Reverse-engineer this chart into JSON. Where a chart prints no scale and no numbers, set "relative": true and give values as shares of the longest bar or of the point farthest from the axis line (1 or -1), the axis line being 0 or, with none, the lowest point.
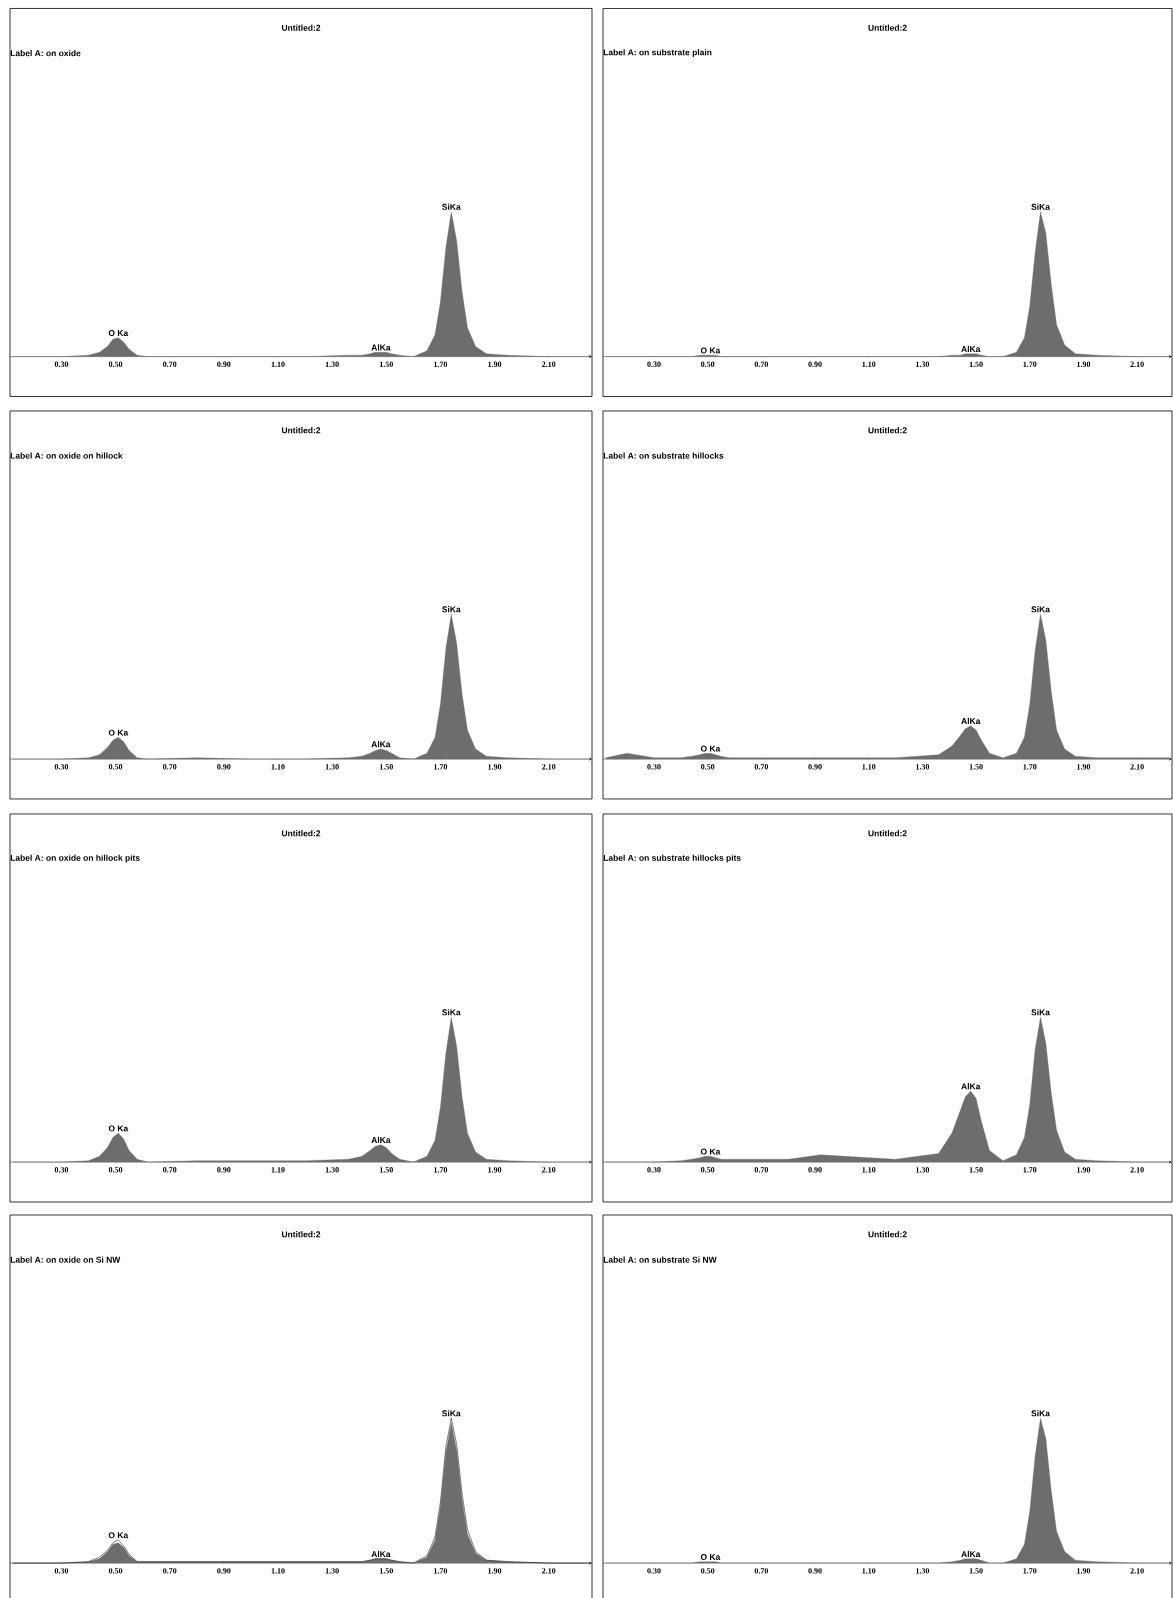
{
  "chart_data": [
    {
      "type": "area",
      "relative": true,
      "title": "Untitled:2",
      "subtitle": "Label A: on oxide",
      "xlim": [
        0.11,
        2.26
      ],
      "xticks": [
        {
          "value": 0.3,
          "label": "0.30"
        },
        {
          "value": 0.5,
          "label": "0.50"
        },
        {
          "value": 0.7,
          "label": "0.70"
        },
        {
          "value": 0.9,
          "label": "0.90"
        },
        {
          "value": 1.1,
          "label": "1.10"
        },
        {
          "value": 1.3,
          "label": "1.30"
        },
        {
          "value": 1.5,
          "label": "1.50"
        },
        {
          "value": 1.7,
          "label": "1.70"
        },
        {
          "value": 1.9,
          "label": "1.90"
        },
        {
          "value": 2.1,
          "label": "2.10"
        }
      ],
      "x": [
        0.12,
        0.2,
        0.3,
        0.4,
        0.44,
        0.47,
        0.49,
        0.51,
        0.53,
        0.55,
        0.58,
        0.62,
        0.8,
        1.0,
        1.2,
        1.36,
        1.41,
        1.44,
        1.46,
        1.48,
        1.5,
        1.52,
        1.55,
        1.6,
        1.65,
        1.68,
        1.7,
        1.72,
        1.74,
        1.76,
        1.78,
        1.8,
        1.83,
        1.87,
        1.95,
        2.1,
        2.25
      ],
      "series": [
        {
          "color": "#6d6d6e",
          "values": [
            0,
            0,
            0,
            0.01,
            0.03,
            0.07,
            0.12,
            0.13,
            0.1,
            0.05,
            0.01,
            0,
            0,
            0,
            0,
            0.01,
            0.01,
            0.02,
            0.03,
            0.03,
            0.03,
            0.02,
            0.01,
            0,
            0.04,
            0.15,
            0.38,
            0.75,
            1,
            0.8,
            0.45,
            0.2,
            0.07,
            0.02,
            0.01,
            0,
            0
          ]
        }
      ],
      "annotations": [
        {
          "text": "O Ka",
          "x": 0.51,
          "y": 0.13
        },
        {
          "text": "AlKa",
          "x": 1.48,
          "y": 0.03
        },
        {
          "text": "SiKa",
          "x": 1.74,
          "y": 1
        }
      ]
    },
    {
      "type": "area",
      "relative": true,
      "title": "Untitled:2",
      "subtitle": "Label A: on substrate plain",
      "xlim": [
        0.11,
        2.23
      ],
      "xticks": [
        {
          "value": 0.3,
          "label": "0.30"
        },
        {
          "value": 0.5,
          "label": "0.50"
        },
        {
          "value": 0.7,
          "label": "0.70"
        },
        {
          "value": 0.9,
          "label": "0.90"
        },
        {
          "value": 1.1,
          "label": "1.10"
        },
        {
          "value": 1.3,
          "label": "1.30"
        },
        {
          "value": 1.5,
          "label": "1.50"
        },
        {
          "value": 1.7,
          "label": "1.70"
        },
        {
          "value": 1.9,
          "label": "1.90"
        },
        {
          "value": 2.1,
          "label": "2.10"
        }
      ],
      "x": [
        0.12,
        0.2,
        0.3,
        0.4,
        0.44,
        0.47,
        0.49,
        0.51,
        0.53,
        0.55,
        0.58,
        0.62,
        0.8,
        1.0,
        1.2,
        1.36,
        1.41,
        1.44,
        1.46,
        1.48,
        1.5,
        1.52,
        1.55,
        1.6,
        1.65,
        1.68,
        1.7,
        1.72,
        1.74,
        1.76,
        1.78,
        1.8,
        1.83,
        1.87,
        1.95,
        2.1,
        2.22
      ],
      "series": [
        {
          "color": "#6d6d6e",
          "values": [
            0,
            0,
            0,
            0,
            0,
            0.01,
            0.01,
            0.01,
            0.01,
            0,
            0,
            0,
            0,
            0,
            0,
            0,
            0.01,
            0.01,
            0.02,
            0.02,
            0.02,
            0.01,
            0,
            0,
            0.03,
            0.13,
            0.35,
            0.72,
            1,
            0.85,
            0.5,
            0.22,
            0.08,
            0.02,
            0.01,
            0,
            0
          ]
        }
      ],
      "annotations": [
        {
          "text": "O Ka",
          "x": 0.51,
          "y": 0.01
        },
        {
          "text": "AlKa",
          "x": 1.48,
          "y": 0.02
        },
        {
          "text": "SiKa",
          "x": 1.74,
          "y": 1
        }
      ]
    },
    {
      "type": "area",
      "relative": true,
      "title": "Untitled:2",
      "subtitle": "Label A: on oxide on hillock",
      "xlim": [
        0.11,
        2.26
      ],
      "xticks": [
        {
          "value": 0.3,
          "label": "0.30"
        },
        {
          "value": 0.5,
          "label": "0.50"
        },
        {
          "value": 0.7,
          "label": "0.70"
        },
        {
          "value": 0.9,
          "label": "0.90"
        },
        {
          "value": 1.1,
          "label": "1.10"
        },
        {
          "value": 1.3,
          "label": "1.30"
        },
        {
          "value": 1.5,
          "label": "1.50"
        },
        {
          "value": 1.7,
          "label": "1.70"
        },
        {
          "value": 1.9,
          "label": "1.90"
        },
        {
          "value": 2.1,
          "label": "2.10"
        }
      ],
      "x": [
        0.12,
        0.2,
        0.3,
        0.4,
        0.44,
        0.47,
        0.49,
        0.51,
        0.53,
        0.55,
        0.58,
        0.62,
        0.8,
        1.0,
        1.2,
        1.36,
        1.41,
        1.44,
        1.46,
        1.48,
        1.5,
        1.52,
        1.55,
        1.6,
        1.65,
        1.68,
        1.7,
        1.72,
        1.74,
        1.76,
        1.78,
        1.8,
        1.83,
        1.87,
        1.95,
        2.1,
        2.25
      ],
      "series": [
        {
          "color": "#6d6d6e",
          "values": [
            0,
            0,
            0,
            0.01,
            0.03,
            0.08,
            0.13,
            0.15,
            0.12,
            0.06,
            0.01,
            0,
            0.01,
            0,
            0,
            0.01,
            0.02,
            0.04,
            0.06,
            0.07,
            0.06,
            0.04,
            0.01,
            0,
            0.04,
            0.15,
            0.38,
            0.76,
            1,
            0.8,
            0.45,
            0.2,
            0.07,
            0.02,
            0.01,
            0,
            0
          ]
        }
      ],
      "annotations": [
        {
          "text": "O Ka",
          "x": 0.51,
          "y": 0.15
        },
        {
          "text": "AlKa",
          "x": 1.48,
          "y": 0.07
        },
        {
          "text": "SiKa",
          "x": 1.74,
          "y": 1
        }
      ]
    },
    {
      "type": "area",
      "relative": true,
      "title": "Untitled:2",
      "subtitle": "Label A: on substrate hillocks",
      "xlim": [
        0.11,
        2.23
      ],
      "xticks": [
        {
          "value": 0.3,
          "label": "0.30"
        },
        {
          "value": 0.5,
          "label": "0.50"
        },
        {
          "value": 0.7,
          "label": "0.70"
        },
        {
          "value": 0.9,
          "label": "0.90"
        },
        {
          "value": 1.1,
          "label": "1.10"
        },
        {
          "value": 1.3,
          "label": "1.30"
        },
        {
          "value": 1.5,
          "label": "1.50"
        },
        {
          "value": 1.7,
          "label": "1.70"
        },
        {
          "value": 1.9,
          "label": "1.90"
        },
        {
          "value": 2.1,
          "label": "2.10"
        }
      ],
      "x": [
        0.12,
        0.2,
        0.3,
        0.4,
        0.44,
        0.47,
        0.49,
        0.51,
        0.53,
        0.55,
        0.58,
        0.62,
        0.8,
        1.0,
        1.2,
        1.36,
        1.41,
        1.44,
        1.46,
        1.48,
        1.5,
        1.52,
        1.55,
        1.6,
        1.65,
        1.68,
        1.7,
        1.72,
        1.74,
        1.76,
        1.78,
        1.8,
        1.83,
        1.87,
        1.95,
        2.1,
        2.22
      ],
      "series": [
        {
          "color": "#6d6d6e",
          "values": [
            0.01,
            0.04,
            0.01,
            0.01,
            0.02,
            0.03,
            0.04,
            0.04,
            0.03,
            0.02,
            0.01,
            0.01,
            0.01,
            0.01,
            0.01,
            0.03,
            0.09,
            0.16,
            0.21,
            0.23,
            0.2,
            0.13,
            0.04,
            0.01,
            0.04,
            0.15,
            0.38,
            0.75,
            1,
            0.82,
            0.47,
            0.2,
            0.07,
            0.02,
            0.01,
            0.01,
            0.01
          ]
        }
      ],
      "annotations": [
        {
          "text": "O Ka",
          "x": 0.51,
          "y": 0.04
        },
        {
          "text": "AlKa",
          "x": 1.48,
          "y": 0.23
        },
        {
          "text": "SiKa",
          "x": 1.74,
          "y": 1
        }
      ]
    },
    {
      "type": "area",
      "relative": true,
      "title": "Untitled:2",
      "subtitle": "Label A: on oxide on hillock pits",
      "xlim": [
        0.11,
        2.26
      ],
      "xticks": [
        {
          "value": 0.3,
          "label": "0.30"
        },
        {
          "value": 0.5,
          "label": "0.50"
        },
        {
          "value": 0.7,
          "label": "0.70"
        },
        {
          "value": 0.9,
          "label": "0.90"
        },
        {
          "value": 1.1,
          "label": "1.10"
        },
        {
          "value": 1.3,
          "label": "1.30"
        },
        {
          "value": 1.5,
          "label": "1.50"
        },
        {
          "value": 1.7,
          "label": "1.70"
        },
        {
          "value": 1.9,
          "label": "1.90"
        },
        {
          "value": 2.1,
          "label": "2.10"
        }
      ],
      "x": [
        0.12,
        0.2,
        0.3,
        0.4,
        0.44,
        0.47,
        0.49,
        0.51,
        0.53,
        0.55,
        0.58,
        0.62,
        0.8,
        1.0,
        1.2,
        1.36,
        1.41,
        1.44,
        1.46,
        1.48,
        1.5,
        1.52,
        1.55,
        1.6,
        1.65,
        1.68,
        1.7,
        1.72,
        1.74,
        1.76,
        1.78,
        1.8,
        1.83,
        1.87,
        1.95,
        2.1,
        2.25
      ],
      "series": [
        {
          "color": "#6d6d6e",
          "values": [
            0,
            0,
            0,
            0.01,
            0.04,
            0.1,
            0.17,
            0.2,
            0.16,
            0.08,
            0.02,
            0,
            0.01,
            0.01,
            0.01,
            0.02,
            0.04,
            0.08,
            0.11,
            0.12,
            0.1,
            0.06,
            0.02,
            0,
            0.04,
            0.15,
            0.38,
            0.75,
            1,
            0.8,
            0.45,
            0.2,
            0.07,
            0.02,
            0.01,
            0,
            0
          ]
        }
      ],
      "annotations": [
        {
          "text": "O Ka",
          "x": 0.51,
          "y": 0.2
        },
        {
          "text": "AlKa",
          "x": 1.48,
          "y": 0.12
        },
        {
          "text": "SiKa",
          "x": 1.74,
          "y": 1
        }
      ]
    },
    {
      "type": "area",
      "relative": true,
      "title": "Untitled:2",
      "subtitle": "Label A: on substrate hillocks pits",
      "xlim": [
        0.11,
        2.23
      ],
      "xticks": [
        {
          "value": 0.3,
          "label": "0.30"
        },
        {
          "value": 0.5,
          "label": "0.50"
        },
        {
          "value": 0.7,
          "label": "0.70"
        },
        {
          "value": 0.9,
          "label": "0.90"
        },
        {
          "value": 1.1,
          "label": "1.10"
        },
        {
          "value": 1.3,
          "label": "1.30"
        },
        {
          "value": 1.5,
          "label": "1.50"
        },
        {
          "value": 1.7,
          "label": "1.70"
        },
        {
          "value": 1.9,
          "label": "1.90"
        },
        {
          "value": 2.1,
          "label": "2.10"
        }
      ],
      "x": [
        0.12,
        0.2,
        0.3,
        0.4,
        0.44,
        0.47,
        0.49,
        0.51,
        0.53,
        0.55,
        0.58,
        0.62,
        0.8,
        0.92,
        1.2,
        1.36,
        1.41,
        1.44,
        1.46,
        1.48,
        1.5,
        1.52,
        1.55,
        1.6,
        1.65,
        1.68,
        1.7,
        1.72,
        1.74,
        1.76,
        1.78,
        1.8,
        1.83,
        1.87,
        1.95,
        2.1,
        2.22
      ],
      "series": [
        {
          "color": "#6d6d6e",
          "values": [
            0,
            0,
            0,
            0.01,
            0.02,
            0.03,
            0.04,
            0.04,
            0.03,
            0.02,
            0.02,
            0.02,
            0.02,
            0.05,
            0.02,
            0.06,
            0.2,
            0.35,
            0.45,
            0.49,
            0.44,
            0.28,
            0.08,
            0.01,
            0.05,
            0.17,
            0.4,
            0.78,
            1,
            0.82,
            0.48,
            0.22,
            0.07,
            0.02,
            0.01,
            0,
            0
          ]
        }
      ],
      "annotations": [
        {
          "text": "O Ka",
          "x": 0.51,
          "y": 0.04
        },
        {
          "text": "AlKa",
          "x": 1.48,
          "y": 0.49
        },
        {
          "text": "SiKa",
          "x": 1.74,
          "y": 1
        }
      ]
    },
    {
      "type": "area",
      "relative": true,
      "title": "Untitled:2",
      "subtitle": "Label A: on oxide on Si NW",
      "xlim": [
        0.11,
        2.26
      ],
      "xticks": [
        {
          "value": 0.3,
          "label": "0.30"
        },
        {
          "value": 0.5,
          "label": "0.50"
        },
        {
          "value": 0.7,
          "label": "0.70"
        },
        {
          "value": 0.9,
          "label": "0.90"
        },
        {
          "value": 1.1,
          "label": "1.10"
        },
        {
          "value": 1.3,
          "label": "1.30"
        },
        {
          "value": 1.5,
          "label": "1.50"
        },
        {
          "value": 1.7,
          "label": "1.70"
        },
        {
          "value": 1.9,
          "label": "1.90"
        },
        {
          "value": 2.1,
          "label": "2.10"
        }
      ],
      "x": [
        0.12,
        0.2,
        0.3,
        0.4,
        0.44,
        0.47,
        0.49,
        0.51,
        0.53,
        0.55,
        0.58,
        0.62,
        0.8,
        1.0,
        1.2,
        1.36,
        1.41,
        1.44,
        1.46,
        1.48,
        1.5,
        1.52,
        1.55,
        1.6,
        1.65,
        1.68,
        1.7,
        1.72,
        1.74,
        1.76,
        1.78,
        1.8,
        1.83,
        1.87,
        1.95,
        2.1,
        2.25
      ],
      "series": [
        {
          "color": "#6d6d6e",
          "values": [
            0,
            0,
            0,
            0.01,
            0.03,
            0.08,
            0.13,
            0.14,
            0.11,
            0.05,
            0.01,
            0.01,
            0.01,
            0.01,
            0.01,
            0.01,
            0.01,
            0.02,
            0.03,
            0.03,
            0.03,
            0.02,
            0.01,
            0,
            0.04,
            0.16,
            0.39,
            0.76,
            0.97,
            0.78,
            0.44,
            0.2,
            0.07,
            0.02,
            0.01,
            0,
            0
          ]
        },
        {
          "type": "line",
          "color": "#000000",
          "values": [
            0,
            0,
            0,
            0.01,
            0.04,
            0.09,
            0.14,
            0.16,
            0.12,
            0.06,
            0.01,
            0.01,
            0.01,
            0.01,
            0.01,
            0.01,
            0.01,
            0.02,
            0.03,
            0.03,
            0.03,
            0.02,
            0.01,
            0,
            0.05,
            0.18,
            0.42,
            0.8,
            1,
            0.82,
            0.48,
            0.23,
            0.08,
            0.02,
            0.01,
            0,
            0
          ]
        }
      ],
      "annotations": [
        {
          "text": "O Ka",
          "x": 0.51,
          "y": 0.16
        },
        {
          "text": "AlKa",
          "x": 1.48,
          "y": 0.03
        },
        {
          "text": "SiKa",
          "x": 1.74,
          "y": 1
        }
      ]
    },
    {
      "type": "area",
      "relative": true,
      "title": "Untitled:2",
      "subtitle": "Label A: on substrate Si NW",
      "xlim": [
        0.11,
        2.23
      ],
      "xticks": [
        {
          "value": 0.3,
          "label": "0.30"
        },
        {
          "value": 0.5,
          "label": "0.50"
        },
        {
          "value": 0.7,
          "label": "0.70"
        },
        {
          "value": 0.9,
          "label": "0.90"
        },
        {
          "value": 1.1,
          "label": "1.10"
        },
        {
          "value": 1.3,
          "label": "1.30"
        },
        {
          "value": 1.5,
          "label": "1.50"
        },
        {
          "value": 1.7,
          "label": "1.70"
        },
        {
          "value": 1.9,
          "label": "1.90"
        },
        {
          "value": 2.1,
          "label": "2.10"
        }
      ],
      "x": [
        0.12,
        0.2,
        0.3,
        0.4,
        0.44,
        0.47,
        0.49,
        0.51,
        0.53,
        0.55,
        0.58,
        0.62,
        0.8,
        1.0,
        1.2,
        1.36,
        1.41,
        1.44,
        1.46,
        1.48,
        1.5,
        1.52,
        1.55,
        1.6,
        1.65,
        1.68,
        1.7,
        1.72,
        1.74,
        1.76,
        1.78,
        1.8,
        1.83,
        1.87,
        1.95,
        2.1,
        2.22
      ],
      "series": [
        {
          "color": "#6d6d6e",
          "values": [
            0,
            0,
            0,
            0,
            0,
            0.01,
            0.01,
            0.01,
            0.01,
            0,
            0,
            0,
            0,
            0,
            0,
            0,
            0.01,
            0.02,
            0.03,
            0.03,
            0.03,
            0.02,
            0,
            0,
            0.03,
            0.13,
            0.36,
            0.74,
            1,
            0.86,
            0.5,
            0.22,
            0.08,
            0.02,
            0.01,
            0,
            0
          ]
        }
      ],
      "annotations": [
        {
          "text": "O Ka",
          "x": 0.51,
          "y": 0.01
        },
        {
          "text": "AlKa",
          "x": 1.48,
          "y": 0.03
        },
        {
          "text": "SiKa",
          "x": 1.74,
          "y": 1
        }
      ]
    }
  ]
}
